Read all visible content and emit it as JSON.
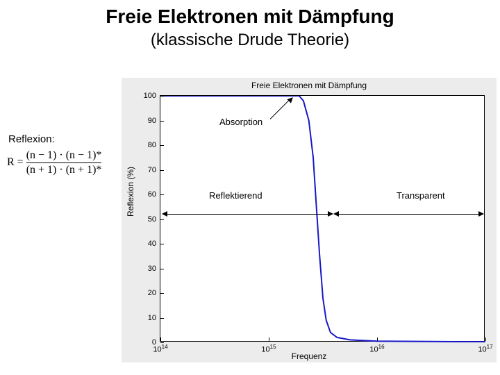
{
  "title": "Freie Elektronen mit Dämpfung",
  "subtitle": "(klassische Drude Theorie)",
  "reflexion_label": "Reflexion:",
  "formula": {
    "lhs": "R =",
    "num": "(n − 1) · (n − 1)*",
    "den": "(n + 1) · (n + 1)*"
  },
  "chart": {
    "type": "line",
    "title": "Freie Elektronen mit Dämpfung",
    "xlabel": "Frequenz",
    "ylabel": "Reflexion (%)",
    "background_color": "#ececec",
    "plot_bg": "#ffffff",
    "line_color": "#1818c8",
    "line_width": 2,
    "ylim": [
      0,
      100
    ],
    "yticks": [
      0,
      10,
      20,
      30,
      40,
      50,
      60,
      70,
      80,
      90,
      100
    ],
    "xlim_exp": [
      14,
      17
    ],
    "xticks_exp": [
      14,
      15,
      16,
      17
    ],
    "tick_fontsize": 11,
    "label_fontsize": 12,
    "title_fontsize": 12,
    "curve": [
      {
        "xe": 14.0,
        "y": 100
      },
      {
        "xe": 15.28,
        "y": 100
      },
      {
        "xe": 15.32,
        "y": 98
      },
      {
        "xe": 15.37,
        "y": 90
      },
      {
        "xe": 15.41,
        "y": 75
      },
      {
        "xe": 15.44,
        "y": 55
      },
      {
        "xe": 15.47,
        "y": 35
      },
      {
        "xe": 15.5,
        "y": 18
      },
      {
        "xe": 15.53,
        "y": 9
      },
      {
        "xe": 15.57,
        "y": 4
      },
      {
        "xe": 15.63,
        "y": 2
      },
      {
        "xe": 15.75,
        "y": 1
      },
      {
        "xe": 16.0,
        "y": 0.5
      },
      {
        "xe": 17.0,
        "y": 0.2
      }
    ],
    "annotations": {
      "absorption": "Absorption",
      "reflektierend": "Reflektierend",
      "transparent": "Transparent"
    }
  }
}
